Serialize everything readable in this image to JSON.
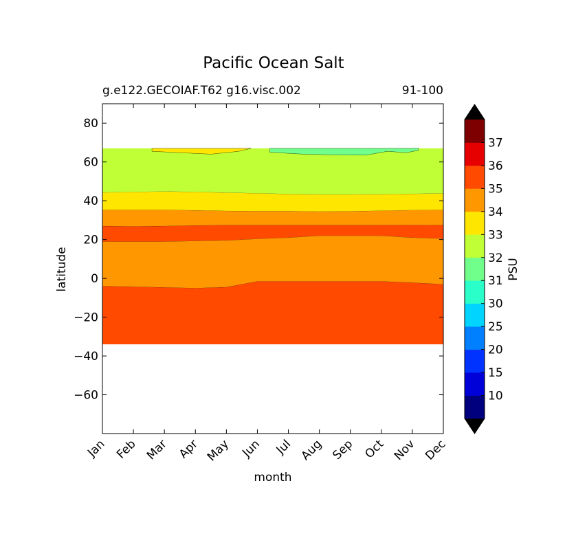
{
  "chart_data": {
    "type": "contourf",
    "title": "Pacific Ocean Salt",
    "subtitle_left": "g.e122.GECOIAF.T62 g16.visc.002",
    "subtitle_right": "91-100",
    "xlabel": "month",
    "ylabel": "latitude",
    "x_categories": [
      "Jan",
      "Feb",
      "Mar",
      "Apr",
      "May",
      "Jun",
      "Jul",
      "Aug",
      "Sep",
      "Oct",
      "Nov",
      "Dec"
    ],
    "ylim": [
      -80,
      90
    ],
    "y_ticks": [
      80,
      60,
      40,
      20,
      0,
      -20,
      -40,
      -60
    ],
    "y_tick_labels": [
      "80",
      "60",
      "40",
      "20",
      "0",
      "−20",
      "−40",
      "−60"
    ],
    "data_lat_range": [
      -34,
      67
    ],
    "regions": [
      {
        "name": "band-south-35-36",
        "level": 35,
        "color": "#ff4a00",
        "upper": [
          -4,
          -4.3,
          -4.6,
          -5,
          -4.5,
          -1.5,
          -1.5,
          -1.5,
          -1.5,
          -1.5,
          -2.2,
          -3
        ],
        "lower": "bottom"
      },
      {
        "name": "band-equatorial-34-35",
        "level": 34,
        "color": "#ff9800",
        "upper": [
          19,
          19,
          19,
          19.3,
          19.6,
          20.4,
          21,
          22,
          22,
          22,
          21,
          20.5
        ],
        "lower": "prev"
      },
      {
        "name": "band-tropical-35-36",
        "level": 35,
        "color": "#ff4a00",
        "upper": [
          27,
          26.8,
          27,
          27.3,
          27.5,
          27.5,
          27.5,
          27.5,
          27.5,
          27.5,
          27.6,
          27.5
        ],
        "lower": "prev"
      },
      {
        "name": "band-subtropical-34-35",
        "level": 34,
        "color": "#ff9800",
        "upper": [
          35.3,
          35.3,
          35.3,
          35.1,
          34.8,
          34.7,
          34.7,
          34.5,
          34.6,
          34.9,
          35.2,
          35.3
        ],
        "lower": "prev"
      },
      {
        "name": "band-midlat-33-34",
        "level": 33,
        "color": "#ffe600",
        "upper": [
          44.3,
          44.6,
          44.8,
          44.6,
          44.2,
          43.9,
          43.5,
          43.3,
          43.3,
          43.4,
          43.6,
          43.8
        ],
        "lower": "prev"
      },
      {
        "name": "band-subpolar-32-33",
        "level": 32,
        "color": "#c0ff36",
        "upper": [
          67,
          67,
          67,
          67,
          67,
          67,
          67,
          67,
          67,
          67,
          67,
          67
        ],
        "lower": "prev"
      }
    ],
    "patches": [
      {
        "name": "patch-33-34-north",
        "level": 33,
        "color": "#ffe600",
        "upper_x": [
          1.6,
          2.5,
          3.5,
          4.5,
          4.8
        ],
        "upper_y": [
          67,
          67,
          67,
          67,
          67
        ],
        "lower_x": [
          4.8,
          4.4,
          3.5,
          2.5,
          1.6
        ],
        "lower_y": [
          67,
          65.5,
          64,
          64.8,
          65.5
        ]
      },
      {
        "name": "patch-31-32-north",
        "level": 31,
        "color": "#6fff8a",
        "upper_x": [
          5.4,
          6.5,
          7.5,
          8.5,
          9.5,
          10.2
        ],
        "upper_y": [
          67,
          67,
          67,
          67,
          67,
          67
        ],
        "lower_x": [
          10.2,
          9.8,
          9.2,
          8.5,
          7.5,
          6.5,
          5.4
        ],
        "lower_y": [
          66,
          64.8,
          65.5,
          63.5,
          63.6,
          64,
          65
        ]
      }
    ],
    "colorbar": {
      "label": "PSU",
      "levels": [
        "10",
        "15",
        "20",
        "25",
        "30",
        "31",
        "32",
        "33",
        "34",
        "35",
        "36",
        "37"
      ],
      "colors": [
        "#00007f",
        "#0000d8",
        "#0033ff",
        "#0080ff",
        "#00d4ff",
        "#2affc9",
        "#6fff8a",
        "#c0ff36",
        "#ffe600",
        "#ff9800",
        "#ff4a00",
        "#e60000",
        "#7f0000"
      ],
      "extend_colors": {
        "low": "#000000",
        "high": "#000000"
      }
    }
  }
}
